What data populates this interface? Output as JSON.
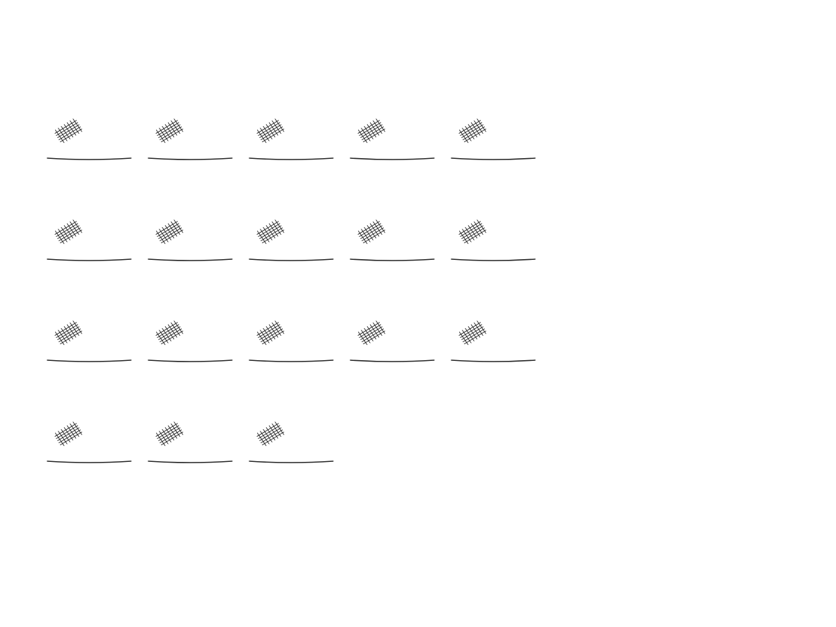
{
  "worksheet": {
    "item_count": 18,
    "items_per_row": 5,
    "item_icon": "crosshatch-blob-icon",
    "answer_line": "blank-answer-line"
  },
  "colors": {
    "background": "#ffffff",
    "ink": "#222222"
  }
}
